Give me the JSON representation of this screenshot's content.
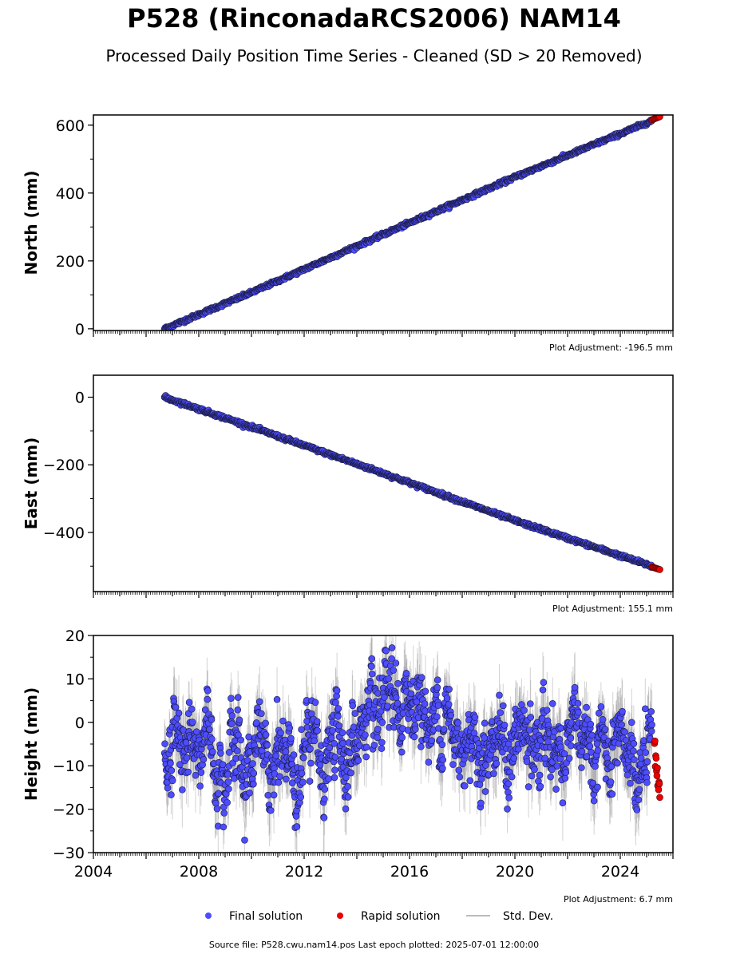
{
  "title": "P528 (RinconadaRCS2006) NAM14",
  "subtitle": "Processed Daily Position Time Series - Cleaned (SD > 20 Removed)",
  "source": "Source file: P528.cwu.nam14.pos  Last epoch plotted: 2025-07-01 12:00:00",
  "legend": [
    {
      "label": "Final solution",
      "color": "#4d4dff",
      "kind": "dot"
    },
    {
      "label": "Rapid solution",
      "color": "#ee0000",
      "kind": "dot"
    },
    {
      "label": "Std. Dev.",
      "color": "#bbbbbb",
      "kind": "line"
    }
  ],
  "colors": {
    "final": "#4d4dff",
    "rapid": "#ee0000",
    "stddev": "#808080",
    "edge": "#1a1a40"
  },
  "chart_data": [
    {
      "type": "scatter",
      "ylabel": "North (mm)",
      "adjustment": "Plot Adjustment: -196.5 mm",
      "xlim": [
        2004,
        2026
      ],
      "ylim": [
        -5,
        630
      ],
      "yticks": [
        0,
        200,
        400,
        600
      ],
      "xticks": [],
      "start": 2006.7,
      "end_final": 2025.2,
      "end": 2025.5,
      "y_start": 0,
      "y_end": 625,
      "noise": 2.5,
      "series": [
        {
          "name": "Final solution",
          "x": [
            2006.7,
            2010,
            2015,
            2020,
            2025.2
          ],
          "y": [
            0,
            107,
            278,
            447,
            613
          ]
        },
        {
          "name": "Rapid solution",
          "x": [
            2025.2,
            2025.5
          ],
          "y": [
            616,
            625
          ]
        }
      ]
    },
    {
      "type": "scatter",
      "ylabel": "East (mm)",
      "adjustment": "Plot Adjustment: 155.1 mm",
      "xlim": [
        2004,
        2026
      ],
      "ylim": [
        -575,
        65
      ],
      "yticks": [
        -400,
        -200,
        0
      ],
      "xticks": [],
      "start": 2006.7,
      "end_final": 2025.2,
      "end": 2025.5,
      "y_start": 0,
      "y_end": -510,
      "noise": 2.5,
      "series": [
        {
          "name": "Final solution",
          "x": [
            2006.7,
            2010,
            2015,
            2020,
            2025.2
          ],
          "y": [
            0,
            -88,
            -225,
            -365,
            -500
          ]
        },
        {
          "name": "Rapid solution",
          "x": [
            2025.2,
            2025.5
          ],
          "y": [
            -502,
            -510
          ]
        }
      ]
    },
    {
      "type": "scatter",
      "ylabel": "Height (mm)",
      "adjustment": "Plot Adjustment: 6.7 mm",
      "xlim": [
        2004,
        2026
      ],
      "ylim": [
        -30,
        20
      ],
      "yticks": [
        -30,
        -20,
        -10,
        0,
        10,
        20
      ],
      "xticks": [
        2004,
        2008,
        2012,
        2016,
        2020,
        2024
      ],
      "start": 2006.7,
      "end_final": 2025.2,
      "end": 2025.5,
      "y_start": -5,
      "y_end": -8,
      "noise": 5,
      "series": [
        {
          "name": "Final solution",
          "x": [
            2007,
            2009,
            2011,
            2013,
            2015,
            2016,
            2018,
            2020,
            2022,
            2024
          ],
          "y": [
            -5,
            -6,
            -10,
            -7,
            0,
            5,
            -3,
            -6,
            -4,
            -10
          ]
        },
        {
          "name": "Rapid solution",
          "x": [
            2025.3,
            2025.35,
            2025.4,
            2025.45,
            2025.5
          ],
          "y": [
            -6,
            -9,
            -12,
            -14,
            -16
          ]
        }
      ]
    }
  ]
}
